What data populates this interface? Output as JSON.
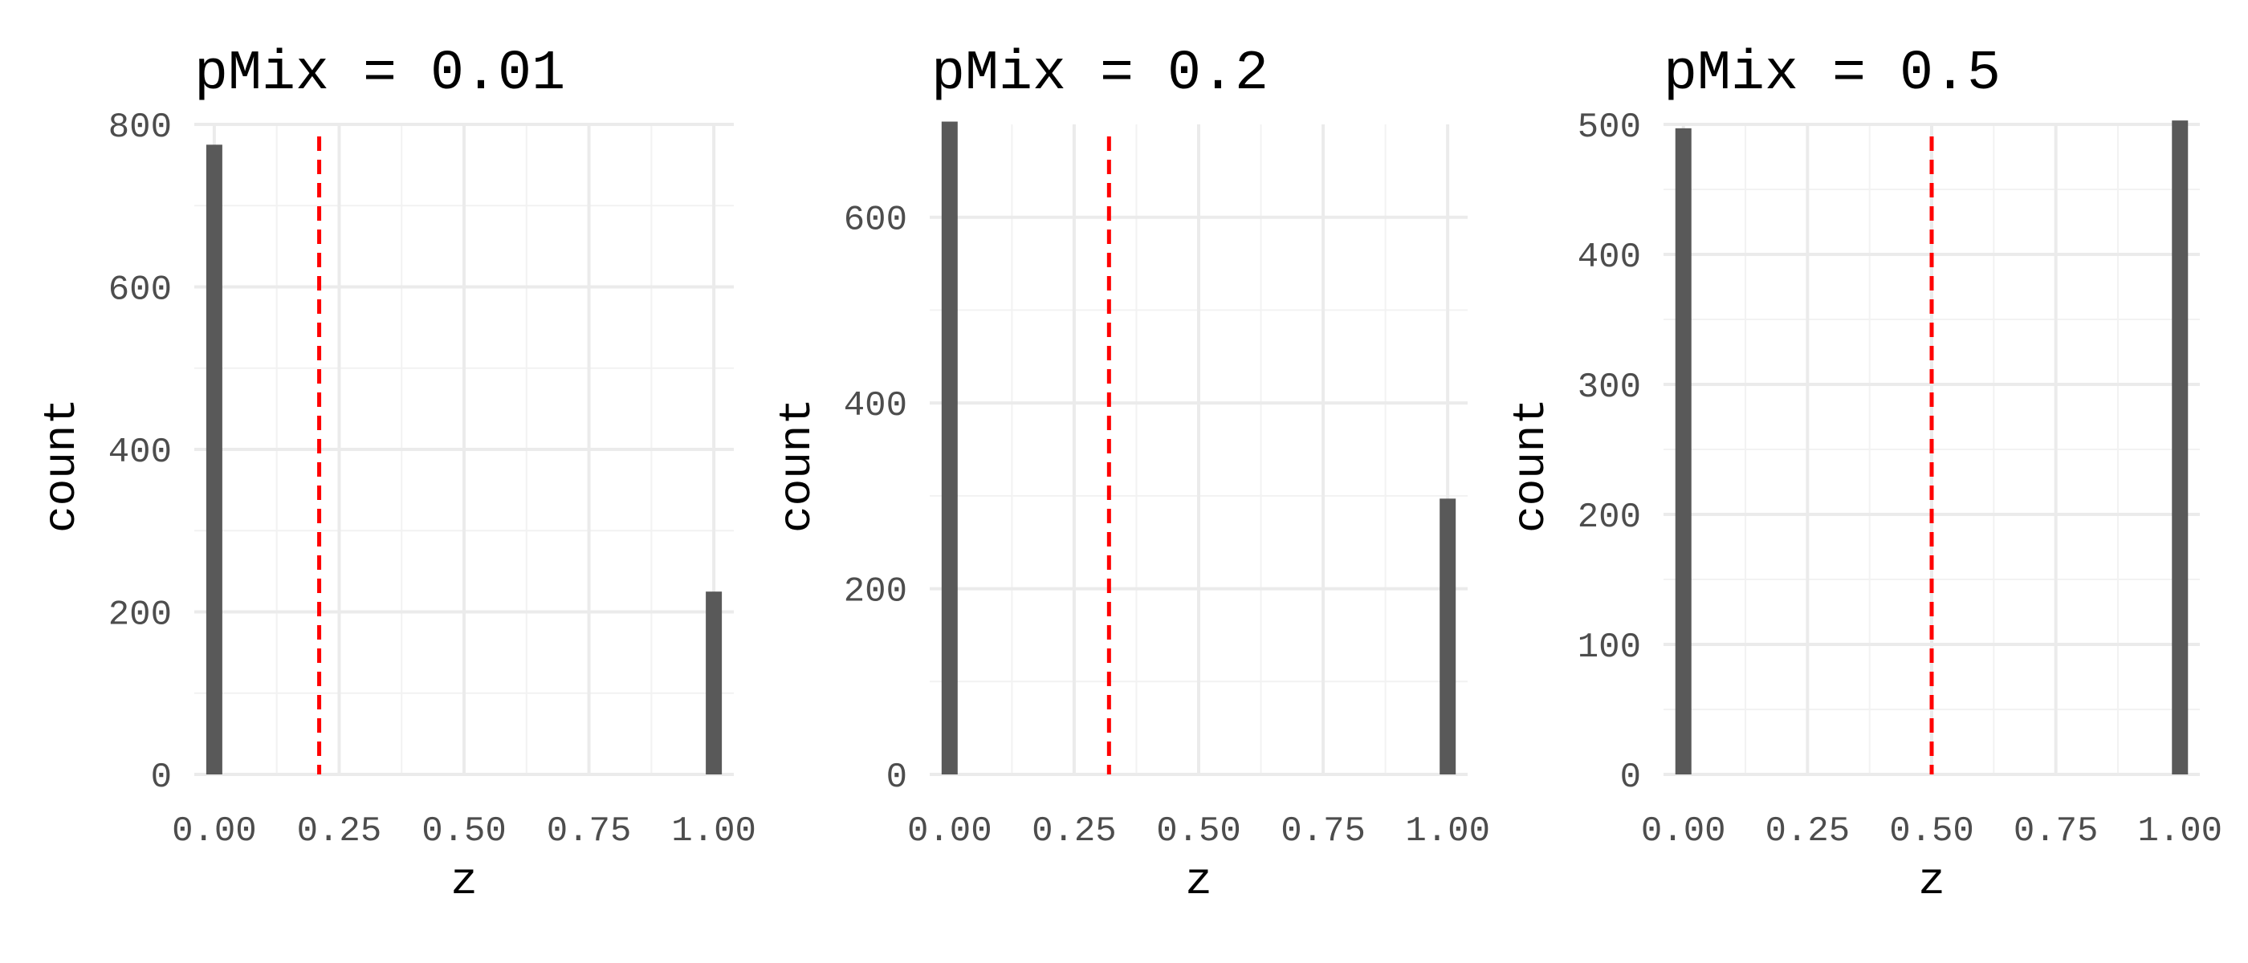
{
  "chart_data": [
    {
      "type": "bar",
      "title": "pMix = 0.01",
      "xlabel": "z",
      "ylabel": "count",
      "xlim": [
        -0.04,
        1.04
      ],
      "ylim": [
        0,
        800
      ],
      "xticks": [
        0,
        0.25,
        0.5,
        0.75,
        1
      ],
      "xtick_labels": [
        "0.00",
        "0.25",
        "0.50",
        "0.75",
        "1.00"
      ],
      "yticks": [
        0,
        200,
        400,
        600,
        800
      ],
      "ytick_labels": [
        "0",
        "200",
        "400",
        "600",
        "800"
      ],
      "bars": [
        {
          "x": 0,
          "count": 775
        },
        {
          "x": 1,
          "count": 225
        }
      ],
      "threshold": 0.21,
      "grid": true
    },
    {
      "type": "bar",
      "title": "pMix = 0.2",
      "xlabel": "z",
      "ylabel": "count",
      "xlim": [
        -0.04,
        1.04
      ],
      "ylim": [
        0,
        700
      ],
      "xticks": [
        0,
        0.25,
        0.5,
        0.75,
        1
      ],
      "xtick_labels": [
        "0.00",
        "0.25",
        "0.50",
        "0.75",
        "1.00"
      ],
      "yticks": [
        0,
        200,
        400,
        600
      ],
      "ytick_labels": [
        "0",
        "200",
        "400",
        "600"
      ],
      "bars": [
        {
          "x": 0,
          "count": 703
        },
        {
          "x": 1,
          "count": 297
        }
      ],
      "threshold": 0.32,
      "grid": true
    },
    {
      "type": "bar",
      "title": "pMix = 0.5",
      "xlabel": "z",
      "ylabel": "count",
      "xlim": [
        -0.04,
        1.04
      ],
      "ylim": [
        0,
        500
      ],
      "xticks": [
        0,
        0.25,
        0.5,
        0.75,
        1
      ],
      "xtick_labels": [
        "0.00",
        "0.25",
        "0.50",
        "0.75",
        "1.00"
      ],
      "yticks": [
        0,
        100,
        200,
        300,
        400,
        500
      ],
      "ytick_labels": [
        "0",
        "100",
        "200",
        "300",
        "400",
        "500"
      ],
      "bars": [
        {
          "x": 0,
          "count": 497
        },
        {
          "x": 1,
          "count": 503
        }
      ],
      "threshold": 0.5,
      "grid": true
    }
  ],
  "colors": {
    "bar": "#595959",
    "threshold": "#ff0000",
    "grid_major": "#ebebeb",
    "grid_minor": "#f2f2f2"
  }
}
